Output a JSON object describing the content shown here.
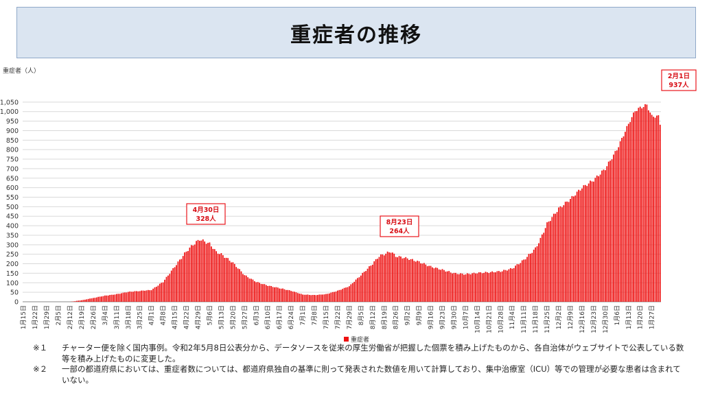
{
  "title": "重症者の推移",
  "chart_data": {
    "type": "bar",
    "ylabel": "重症者（人）",
    "ylim": [
      0,
      1100
    ],
    "yticks": [
      0,
      50,
      100,
      150,
      200,
      250,
      300,
      350,
      400,
      450,
      500,
      550,
      600,
      650,
      700,
      750,
      800,
      850,
      900,
      950,
      "1,000",
      "1,050"
    ],
    "ytick_values": [
      0,
      50,
      100,
      150,
      200,
      250,
      300,
      350,
      400,
      450,
      500,
      550,
      600,
      650,
      700,
      750,
      800,
      850,
      900,
      950,
      1000,
      1050
    ],
    "grid": true,
    "color": "#ee1111",
    "x_tick_labels": [
      "1月15日",
      "1月22日",
      "1月29日",
      "2月5日",
      "2月12日",
      "2月19日",
      "2月26日",
      "3月4日",
      "3月11日",
      "3月18日",
      "3月25日",
      "4月1日",
      "4月8日",
      "4月15日",
      "4月22日",
      "4月29日",
      "5月6日",
      "5月13日",
      "5月20日",
      "5月27日",
      "6月3日",
      "6月10日",
      "6月17日",
      "6月24日",
      "7月1日",
      "7月8日",
      "7月15日",
      "7月22日",
      "7月29日",
      "8月5日",
      "8月12日",
      "8月19日",
      "8月26日",
      "9月2日",
      "9月9日",
      "9月16日",
      "9月23日",
      "9月30日",
      "10月7日",
      "10月14日",
      "10月21日",
      "10月28日",
      "11月4日",
      "11月11日",
      "11月18日",
      "11月25日",
      "12月2日",
      "12月9日",
      "12月16日",
      "12月23日",
      "12月30日",
      "1月6日",
      "1月13日",
      "1月20日",
      "1月27日"
    ],
    "series": [
      {
        "name": "重症者",
        "x_start": "2020-01-15",
        "x_end": "2021-02-01",
        "keypoints": [
          [
            "2020-01-15",
            0
          ],
          [
            "2020-02-12",
            0
          ],
          [
            "2020-02-19",
            8
          ],
          [
            "2020-02-26",
            20
          ],
          [
            "2020-03-04",
            32
          ],
          [
            "2020-03-11",
            40
          ],
          [
            "2020-03-18",
            52
          ],
          [
            "2020-03-25",
            57
          ],
          [
            "2020-04-01",
            62
          ],
          [
            "2020-04-08",
            105
          ],
          [
            "2020-04-15",
            185
          ],
          [
            "2020-04-22",
            265
          ],
          [
            "2020-04-26",
            300
          ],
          [
            "2020-04-30",
            328
          ],
          [
            "2020-05-06",
            305
          ],
          [
            "2020-05-10",
            262
          ],
          [
            "2020-05-13",
            250
          ],
          [
            "2020-05-20",
            205
          ],
          [
            "2020-05-27",
            140
          ],
          [
            "2020-06-03",
            105
          ],
          [
            "2020-06-10",
            85
          ],
          [
            "2020-06-17",
            72
          ],
          [
            "2020-06-24",
            58
          ],
          [
            "2020-07-01",
            38
          ],
          [
            "2020-07-08",
            35
          ],
          [
            "2020-07-15",
            40
          ],
          [
            "2020-07-22",
            58
          ],
          [
            "2020-07-29",
            82
          ],
          [
            "2020-08-05",
            140
          ],
          [
            "2020-08-12",
            200
          ],
          [
            "2020-08-16",
            240
          ],
          [
            "2020-08-23",
            264
          ],
          [
            "2020-08-26",
            240
          ],
          [
            "2020-09-02",
            228
          ],
          [
            "2020-09-09",
            210
          ],
          [
            "2020-09-16",
            185
          ],
          [
            "2020-09-23",
            168
          ],
          [
            "2020-09-30",
            150
          ],
          [
            "2020-10-07",
            145
          ],
          [
            "2020-10-14",
            152
          ],
          [
            "2020-10-21",
            155
          ],
          [
            "2020-10-28",
            160
          ],
          [
            "2020-11-04",
            175
          ],
          [
            "2020-11-11",
            220
          ],
          [
            "2020-11-18",
            280
          ],
          [
            "2020-11-21",
            330
          ],
          [
            "2020-11-25",
            410
          ],
          [
            "2020-12-02",
            490
          ],
          [
            "2020-12-09",
            540
          ],
          [
            "2020-12-16",
            600
          ],
          [
            "2020-12-23",
            640
          ],
          [
            "2020-12-30",
            700
          ],
          [
            "2021-01-06",
            800
          ],
          [
            "2021-01-13",
            935
          ],
          [
            "2021-01-17",
            1005
          ],
          [
            "2021-01-20",
            1020
          ],
          [
            "2021-01-24",
            1035
          ],
          [
            "2021-01-27",
            975
          ],
          [
            "2021-01-31",
            975
          ],
          [
            "2021-02-01",
            937
          ]
        ]
      }
    ],
    "annotations": [
      {
        "date_label": "4月30日",
        "value_label": "328人",
        "date": "2020-04-30",
        "value": 328
      },
      {
        "date_label": "8月23日",
        "value_label": "264人",
        "date": "2020-08-23",
        "value": 264
      },
      {
        "date_label": "2月1日",
        "value_label": "937人",
        "date": "2021-02-01",
        "value": 937
      }
    ],
    "legend": {
      "label": "重症者",
      "placement": "bottom-center"
    }
  },
  "notes": [
    {
      "mark": "※１",
      "text": "チャーター便を除く国内事例。令和2年5月8日公表分から、データソースを従来の厚生労働省が把握した個票を積み上げたものから、各自治体がウェブサイトで公表している数等を積み上げたものに変更した。"
    },
    {
      "mark": "※２",
      "text": "一部の都道府県においては、重症者数については、都道府県独自の基準に則って発表された数値を用いて計算しており、集中治療室（ICU）等での管理が必要な患者は含まれていない。"
    }
  ]
}
